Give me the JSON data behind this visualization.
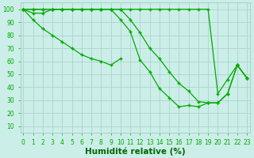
{
  "background_color": "#cceee8",
  "grid_color": "#aad4cc",
  "line_color": "#00aa00",
  "marker": "+",
  "series": [
    [
      100,
      97,
      97,
      100,
      100,
      100,
      100,
      100,
      100,
      100,
      92,
      83,
      61,
      52,
      39,
      32,
      25,
      26,
      25,
      28,
      28,
      35,
      57,
      47
    ],
    [
      100,
      100,
      100,
      100,
      100,
      100,
      100,
      100,
      100,
      100,
      100,
      92,
      82,
      70,
      62,
      52,
      43,
      37,
      29,
      28,
      28,
      35,
      57,
      47
    ],
    [
      100,
      92,
      85,
      80,
      75,
      70,
      65,
      62,
      60,
      57,
      62,
      null,
      null,
      null,
      null,
      null,
      null,
      null,
      null,
      null,
      null,
      null,
      null,
      null
    ],
    [
      100,
      100,
      100,
      100,
      100,
      100,
      100,
      100,
      100,
      100,
      100,
      100,
      100,
      100,
      100,
      100,
      100,
      100,
      100,
      100,
      35,
      46,
      57,
      47
    ]
  ],
  "xlim": [
    -0.3,
    23.3
  ],
  "ylim": [
    5,
    105
  ],
  "yticks": [
    10,
    20,
    30,
    40,
    50,
    60,
    70,
    80,
    90,
    100
  ],
  "xtick_labels": [
    "0",
    "1",
    "2",
    "3",
    "4",
    "5",
    "6",
    "7",
    "8",
    "9",
    "10",
    "11",
    "12",
    "13",
    "14",
    "15",
    "16",
    "17",
    "18",
    "19",
    "20",
    "21",
    "22",
    "23"
  ],
  "xlabel": "Humidité relative (%)",
  "xlabel_color": "#006600",
  "xlabel_fontsize": 7.5,
  "tick_fontsize": 5.5
}
